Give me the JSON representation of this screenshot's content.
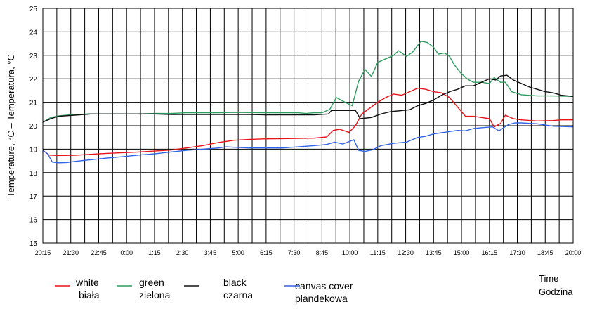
{
  "chart_data": {
    "type": "line",
    "ylabel": "Temperature, °C – Temperatura, °C",
    "xlabel": [
      "Time",
      "Godzina"
    ],
    "ylim": [
      15,
      25
    ],
    "yticks": [
      15,
      16,
      17,
      18,
      19,
      20,
      21,
      22,
      23,
      24,
      25
    ],
    "grid": true,
    "legend_position": "bottom-left",
    "x_ticks": [
      "20:15",
      "21:30",
      "22:45",
      "0:00",
      "1:15",
      "2:30",
      "3:45",
      "5:00",
      "6:15",
      "7:30",
      "8:45",
      "10:00",
      "11:15",
      "12:30",
      "13:45",
      "15:00",
      "16:15",
      "17:30",
      "18:45",
      "20:00"
    ],
    "x_minor_steps_per_label": 2,
    "x_unit_note": "x values are hours elapsed since 20:15 (first day)",
    "series": [
      {
        "name": "white\nbiała",
        "color": "#e8141a",
        "points": [
          [
            0,
            18.95
          ],
          [
            0.4,
            18.75
          ],
          [
            1,
            18.73
          ],
          [
            2,
            18.74
          ],
          [
            3,
            18.78
          ],
          [
            4,
            18.82
          ],
          [
            5,
            18.85
          ],
          [
            6,
            18.88
          ],
          [
            7,
            18.92
          ],
          [
            8,
            18.96
          ],
          [
            9,
            19.05
          ],
          [
            10,
            19.15
          ],
          [
            11,
            19.28
          ],
          [
            12,
            19.38
          ],
          [
            13,
            19.42
          ],
          [
            14,
            19.44
          ],
          [
            15,
            19.45
          ],
          [
            16,
            19.46
          ],
          [
            17,
            19.47
          ],
          [
            17.8,
            19.52
          ],
          [
            18.2,
            19.8
          ],
          [
            18.6,
            19.85
          ],
          [
            19.2,
            19.72
          ],
          [
            19.6,
            20.0
          ],
          [
            20,
            20.5
          ],
          [
            20.5,
            20.75
          ],
          [
            21,
            21.0
          ],
          [
            21.5,
            21.2
          ],
          [
            22,
            21.35
          ],
          [
            22.5,
            21.3
          ],
          [
            23,
            21.45
          ],
          [
            23.5,
            21.6
          ],
          [
            24,
            21.55
          ],
          [
            24.5,
            21.45
          ],
          [
            25,
            21.4
          ],
          [
            25.5,
            21.2
          ],
          [
            26,
            20.8
          ],
          [
            26.5,
            20.4
          ],
          [
            27,
            20.4
          ],
          [
            27.5,
            20.35
          ],
          [
            28,
            20.3
          ],
          [
            28.3,
            19.95
          ],
          [
            28.7,
            20.1
          ],
          [
            29,
            20.45
          ],
          [
            29.5,
            20.3
          ],
          [
            30,
            20.25
          ],
          [
            31,
            20.2
          ],
          [
            32,
            20.22
          ],
          [
            32.5,
            20.25
          ],
          [
            33.25,
            20.25
          ]
        ]
      },
      {
        "name": "green\nzielona",
        "color": "#2e9c5e",
        "points": [
          [
            0,
            20.15
          ],
          [
            0.5,
            20.35
          ],
          [
            1,
            20.42
          ],
          [
            2,
            20.48
          ],
          [
            3,
            20.5
          ],
          [
            4,
            20.5
          ],
          [
            5,
            20.5
          ],
          [
            6,
            20.5
          ],
          [
            7,
            20.52
          ],
          [
            8,
            20.52
          ],
          [
            9,
            20.55
          ],
          [
            10,
            20.55
          ],
          [
            11,
            20.55
          ],
          [
            12,
            20.57
          ],
          [
            13,
            20.56
          ],
          [
            14,
            20.55
          ],
          [
            15,
            20.55
          ],
          [
            16,
            20.55
          ],
          [
            16.5,
            20.52
          ],
          [
            17,
            20.55
          ],
          [
            17.5,
            20.55
          ],
          [
            18,
            20.7
          ],
          [
            18.4,
            21.2
          ],
          [
            18.8,
            21.05
          ],
          [
            19.4,
            20.85
          ],
          [
            19.8,
            21.9
          ],
          [
            20.2,
            22.4
          ],
          [
            20.6,
            22.1
          ],
          [
            21,
            22.7
          ],
          [
            21.5,
            22.85
          ],
          [
            22,
            23.0
          ],
          [
            22.3,
            23.2
          ],
          [
            22.8,
            22.95
          ],
          [
            23.2,
            23.15
          ],
          [
            23.7,
            23.6
          ],
          [
            24.1,
            23.55
          ],
          [
            24.5,
            23.35
          ],
          [
            24.8,
            23.05
          ],
          [
            25.2,
            23.1
          ],
          [
            25.5,
            22.95
          ],
          [
            25.8,
            22.6
          ],
          [
            26.2,
            22.25
          ],
          [
            26.6,
            22.0
          ],
          [
            27,
            21.85
          ],
          [
            27.5,
            21.85
          ],
          [
            28,
            21.8
          ],
          [
            28.3,
            22.05
          ],
          [
            28.7,
            21.85
          ],
          [
            29,
            21.85
          ],
          [
            29.4,
            21.45
          ],
          [
            30,
            21.32
          ],
          [
            31,
            21.27
          ],
          [
            32,
            21.27
          ],
          [
            33.25,
            21.25
          ]
        ]
      },
      {
        "name": "black\nczarna",
        "color": "#111111",
        "points": [
          [
            0,
            20.15
          ],
          [
            0.5,
            20.3
          ],
          [
            1,
            20.4
          ],
          [
            2,
            20.45
          ],
          [
            3,
            20.5
          ],
          [
            4,
            20.5
          ],
          [
            5,
            20.5
          ],
          [
            6,
            20.5
          ],
          [
            7,
            20.5
          ],
          [
            8,
            20.48
          ],
          [
            9,
            20.48
          ],
          [
            10,
            20.48
          ],
          [
            11,
            20.48
          ],
          [
            12,
            20.48
          ],
          [
            13,
            20.48
          ],
          [
            14,
            20.46
          ],
          [
            15,
            20.46
          ],
          [
            16,
            20.46
          ],
          [
            17,
            20.46
          ],
          [
            17.9,
            20.5
          ],
          [
            18.1,
            20.65
          ],
          [
            19,
            20.65
          ],
          [
            19.6,
            20.65
          ],
          [
            19.9,
            20.3
          ],
          [
            20.6,
            20.35
          ],
          [
            21.2,
            20.5
          ],
          [
            21.8,
            20.6
          ],
          [
            23,
            20.68
          ],
          [
            23.5,
            20.85
          ],
          [
            24,
            20.95
          ],
          [
            24.5,
            21.1
          ],
          [
            25,
            21.3
          ],
          [
            25.5,
            21.45
          ],
          [
            26,
            21.55
          ],
          [
            26.5,
            21.7
          ],
          [
            27,
            21.7
          ],
          [
            27.5,
            21.85
          ],
          [
            28,
            22.0
          ],
          [
            28.4,
            21.95
          ],
          [
            28.7,
            22.12
          ],
          [
            29.1,
            22.15
          ],
          [
            29.5,
            21.95
          ],
          [
            30,
            21.8
          ],
          [
            30.5,
            21.65
          ],
          [
            31,
            21.55
          ],
          [
            31.5,
            21.45
          ],
          [
            32,
            21.4
          ],
          [
            32.5,
            21.3
          ],
          [
            33.25,
            21.25
          ]
        ]
      },
      {
        "name": "canvas cover\nplandekowa",
        "color": "#3264e6",
        "points": [
          [
            0,
            18.95
          ],
          [
            0.3,
            18.8
          ],
          [
            0.6,
            18.45
          ],
          [
            1,
            18.42
          ],
          [
            1.5,
            18.43
          ],
          [
            2,
            18.48
          ],
          [
            3,
            18.55
          ],
          [
            4,
            18.62
          ],
          [
            5,
            18.68
          ],
          [
            6,
            18.75
          ],
          [
            7,
            18.8
          ],
          [
            8,
            18.88
          ],
          [
            9,
            18.95
          ],
          [
            10,
            19.0
          ],
          [
            11,
            19.05
          ],
          [
            11.5,
            19.1
          ],
          [
            12,
            19.08
          ],
          [
            13,
            19.05
          ],
          [
            14,
            19.05
          ],
          [
            15,
            19.05
          ],
          [
            16,
            19.1
          ],
          [
            17,
            19.15
          ],
          [
            17.8,
            19.2
          ],
          [
            18.3,
            19.3
          ],
          [
            18.8,
            19.22
          ],
          [
            19.5,
            19.4
          ],
          [
            19.8,
            18.95
          ],
          [
            20.2,
            18.9
          ],
          [
            20.7,
            18.98
          ],
          [
            21.2,
            19.15
          ],
          [
            22,
            19.25
          ],
          [
            22.8,
            19.3
          ],
          [
            23.5,
            19.5
          ],
          [
            24,
            19.55
          ],
          [
            24.5,
            19.65
          ],
          [
            25,
            19.7
          ],
          [
            26,
            19.8
          ],
          [
            26.5,
            19.78
          ],
          [
            27,
            19.88
          ],
          [
            27.6,
            19.92
          ],
          [
            28.2,
            19.95
          ],
          [
            28.6,
            19.78
          ],
          [
            29.2,
            20.05
          ],
          [
            29.6,
            20.12
          ],
          [
            30,
            20.12
          ],
          [
            31,
            20.08
          ],
          [
            32,
            19.98
          ],
          [
            33.25,
            19.95
          ]
        ]
      }
    ]
  }
}
